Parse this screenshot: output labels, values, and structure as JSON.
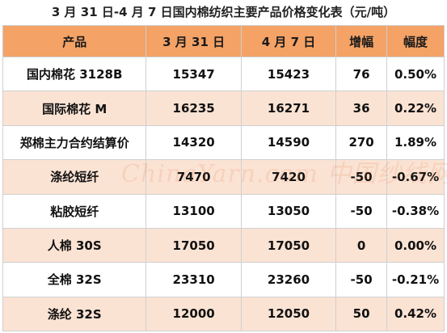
{
  "title": "3 月 31 日-4 月 7 日国内棉纺织主要产品价格变化表（元/吨）",
  "columns": [
    "产品",
    "3 月 31 日",
    "4 月 7 日",
    "增幅",
    "幅度"
  ],
  "rows": [
    {
      "product": "国内棉花 3128B",
      "mar31": "15347",
      "apr7": "15423",
      "change": "76",
      "pct": "0.50%"
    },
    {
      "product": "国际棉花 M",
      "mar31": "16235",
      "apr7": "16271",
      "change": "36",
      "pct": "0.22%"
    },
    {
      "product": "郑棉主力合约结算价",
      "mar31": "14320",
      "apr7": "14590",
      "change": "270",
      "pct": "1.89%"
    },
    {
      "product": "涤纶短纤",
      "mar31": "7470",
      "apr7": "7420",
      "change": "-50",
      "pct": "-0.67%"
    },
    {
      "product": "粘胶短纤",
      "mar31": "13100",
      "apr7": "13050",
      "change": "-50",
      "pct": "-0.38%"
    },
    {
      "product": "人棉 30S",
      "mar31": "17050",
      "apr7": "17050",
      "change": "0",
      "pct": "0.00%"
    },
    {
      "product": "全棉 32S",
      "mar31": "23310",
      "apr7": "23260",
      "change": "-50",
      "pct": "-0.21%"
    },
    {
      "product": "涤纶 32S",
      "mar31": "12000",
      "apr7": "12050",
      "change": "50",
      "pct": "0.42%"
    }
  ],
  "watermark": "ChinaYarn.com 中国纱线网",
  "colors": {
    "header_bg": "#f4a266",
    "stripe_bg": "#fbe3d4"
  }
}
